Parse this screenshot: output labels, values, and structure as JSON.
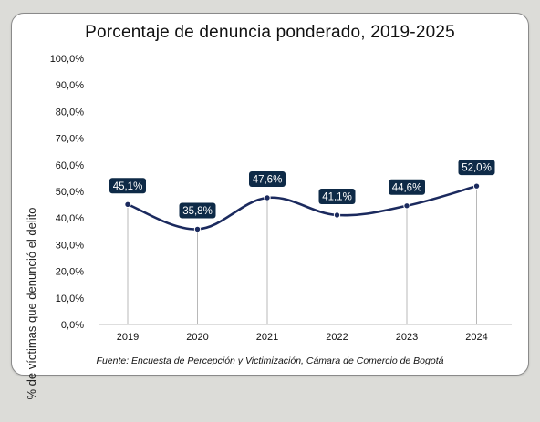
{
  "chart_data": {
    "type": "line",
    "title": "Porcentaje de denuncia ponderado, 2019-2025",
    "ylabel": "% de víctimas que denunció el delito",
    "xlabel": "",
    "categories": [
      "2019",
      "2020",
      "2021",
      "2022",
      "2023",
      "2024"
    ],
    "values": [
      45.1,
      35.8,
      47.6,
      41.1,
      44.6,
      52.0
    ],
    "data_labels": [
      "45,1%",
      "35,8%",
      "47,6%",
      "41,1%",
      "44,6%",
      "52,0%"
    ],
    "ylim": [
      0,
      100
    ],
    "yticks": [
      "0,0%",
      "10,0%",
      "20,0%",
      "30,0%",
      "40,0%",
      "50,0%",
      "60,0%",
      "70,0%",
      "80,0%",
      "90,0%",
      "100,0%"
    ],
    "grid": false,
    "line_color": "#1b2a5e",
    "label_bg_color": "#0e2a47",
    "source": "Fuente: Encuesta de Percepción y Victimización, Cámara de Comercio de Bogotá"
  }
}
